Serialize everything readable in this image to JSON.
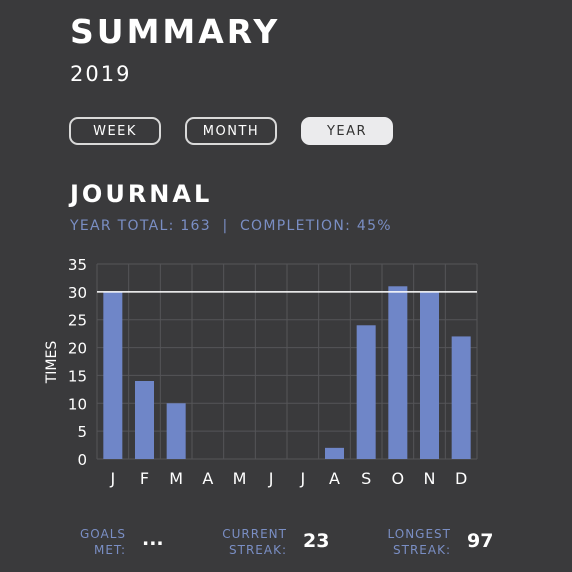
{
  "header": {
    "title": "SUMMARY",
    "year": "2019"
  },
  "period_tabs": {
    "week": "WEEK",
    "month": "MONTH",
    "year": "YEAR",
    "selected": "YEAR"
  },
  "section": {
    "title": "JOURNAL",
    "stats": "YEAR TOTAL: 163  |  COMPLETION: 45%"
  },
  "colors": {
    "bar": "#6f86c8",
    "accent_text": "#7a8ec4",
    "goal_line": "#ffffff",
    "background": "#3a3a3c"
  },
  "chart_data": {
    "type": "bar",
    "categories": [
      "J",
      "F",
      "M",
      "A",
      "M",
      "J",
      "J",
      "A",
      "S",
      "O",
      "N",
      "D"
    ],
    "values": [
      30,
      14,
      10,
      0,
      0,
      0,
      0,
      2,
      24,
      31,
      30,
      22
    ],
    "ylabel": "TIMES",
    "xlabel": "",
    "ylim": [
      0,
      35
    ],
    "yticks": [
      0,
      5,
      10,
      15,
      20,
      25,
      30,
      35
    ],
    "goal_line": 30,
    "grid": true
  },
  "footer": {
    "goals_met_label_1": "GOALS",
    "goals_met_label_2": "MET:",
    "goals_met_value": "...",
    "current_streak_label_1": "CURRENT",
    "current_streak_label_2": "STREAK:",
    "current_streak_value": "23",
    "longest_streak_label_1": "LONGEST",
    "longest_streak_label_2": "STREAK:",
    "longest_streak_value": "97"
  }
}
